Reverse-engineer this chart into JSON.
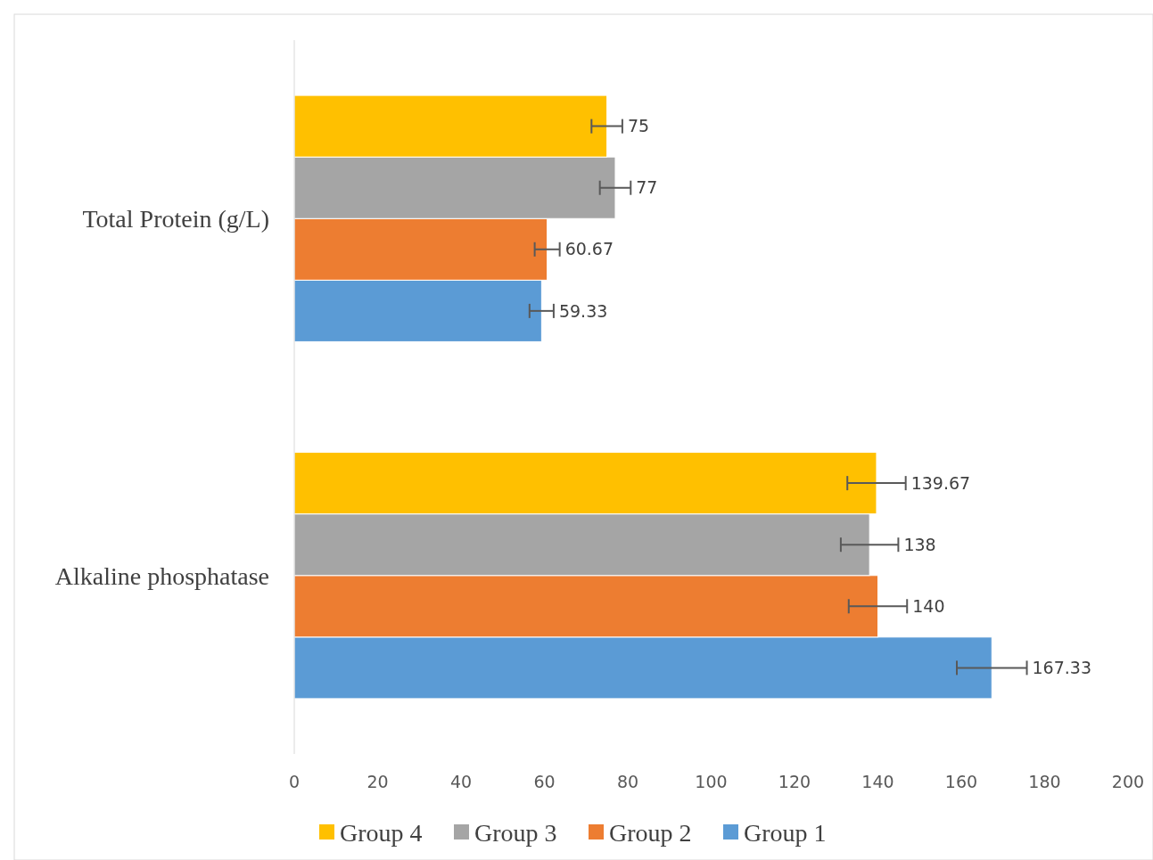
{
  "chart_data": {
    "type": "bar",
    "orientation": "horizontal",
    "categories": [
      "Total Protein (g/L)",
      "Alkaline phosphatase"
    ],
    "series": [
      {
        "name": "Group 1",
        "color": "#5b9bd5",
        "values": [
          59.33,
          167.33
        ],
        "errors": [
          2.9,
          8.4
        ]
      },
      {
        "name": "Group 2",
        "color": "#ed7d31",
        "values": [
          60.67,
          140
        ],
        "errors": [
          3,
          7
        ]
      },
      {
        "name": "Group 3",
        "color": "#a5a5a5",
        "values": [
          77,
          138
        ],
        "errors": [
          3.7,
          6.9
        ]
      },
      {
        "name": "Group 4",
        "color": "#ffc000",
        "values": [
          75,
          139.67
        ],
        "errors": [
          3.7,
          7
        ]
      }
    ],
    "xlim": [
      0,
      200
    ],
    "xticks": [
      0,
      20,
      40,
      60,
      80,
      100,
      120,
      140,
      160,
      180,
      200
    ],
    "data_labels": true,
    "legend": "bottom",
    "grid": false
  }
}
